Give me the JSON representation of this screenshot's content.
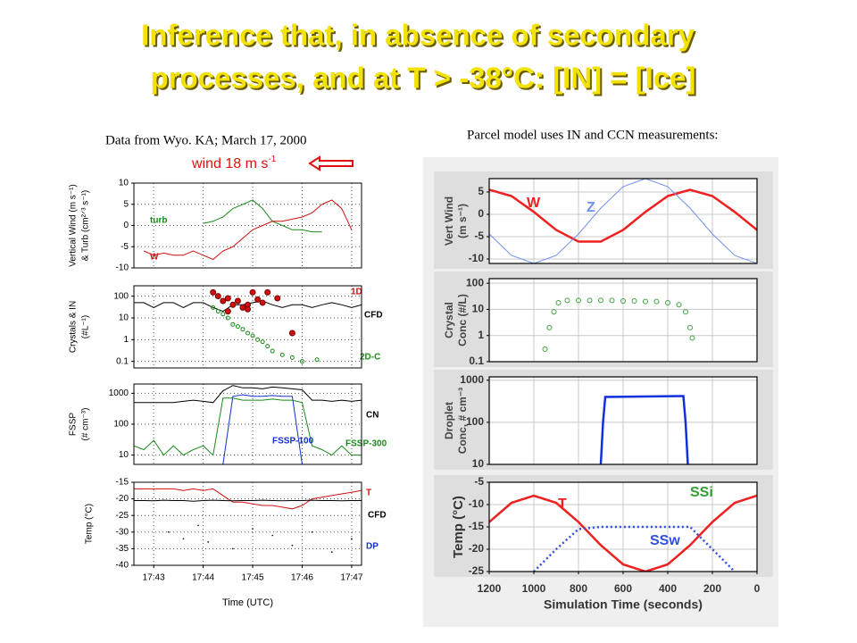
{
  "title": [
    "Inference that, in absence of secondary",
    "processes, and at T > -38°C: [IN] = [Ice]"
  ],
  "left_caption": "Data from Wyo. KA; March 17, 2000",
  "right_caption": "Parcel model uses IN and CCN measurements:",
  "wind_note": {
    "text": "wind 18 m s",
    "sup": "-1"
  },
  "chart_data": [
    {
      "type": "line",
      "ylabel": [
        "Vertical Wind (m s⁻¹)",
        "& Turb (cm²ᐟ³ s⁻¹)"
      ],
      "x": [
        42.6,
        42.8,
        43.0,
        43.2,
        43.4,
        43.6,
        43.8,
        44.0,
        44.2,
        44.4,
        44.6,
        44.8,
        45.0,
        45.2,
        45.4,
        45.6,
        45.8,
        46.0,
        46.2,
        46.4,
        46.6,
        46.8,
        47.0,
        47.2
      ],
      "ylim": [
        -10,
        10
      ],
      "yticks": [
        -10,
        -5,
        0,
        5,
        10
      ],
      "grid": true,
      "series": [
        {
          "name": "turb",
          "color": "#1a8a1a",
          "kind": "line",
          "values": [
            null,
            null,
            null,
            null,
            null,
            null,
            null,
            0.5,
            1,
            2,
            4,
            5,
            6,
            4,
            1,
            0,
            -1,
            -1,
            -1.5,
            -1.5,
            null,
            null,
            null,
            null
          ]
        },
        {
          "name": "W",
          "color": "#d01010",
          "kind": "line",
          "values": [
            null,
            -6,
            -7,
            -6.5,
            -7,
            -7,
            -6,
            -7,
            -8,
            -6,
            -5,
            -3,
            -1,
            0,
            1,
            1,
            1.5,
            2,
            3,
            5,
            6,
            4,
            -1,
            null
          ]
        }
      ]
    },
    {
      "type": "line",
      "ylabel": [
        "Crystals & IN",
        "(#L⁻¹)"
      ],
      "log_scale": true,
      "x": [
        42.6,
        42.8,
        43.0,
        43.2,
        43.4,
        43.6,
        43.8,
        44.0,
        44.2,
        44.4,
        44.6,
        44.8,
        45.0,
        45.2,
        45.4,
        45.6,
        45.8,
        46.0,
        46.2,
        46.4,
        46.6,
        46.8,
        47.0,
        47.2
      ],
      "ylim": [
        0.05,
        300
      ],
      "yticks": [
        0.1,
        1,
        10,
        100
      ],
      "grid": true,
      "series": [
        {
          "name": "CFD",
          "color": "#000000",
          "kind": "line",
          "values": [
            50,
            50,
            30,
            50,
            50,
            30,
            50,
            50,
            30,
            20,
            40,
            40,
            50,
            60,
            40,
            30,
            40,
            40,
            30,
            40,
            50,
            40,
            30,
            40
          ]
        },
        {
          "name": "1D",
          "color": "#d01010",
          "kind": "points",
          "marker": "filled",
          "x": [
            44.2,
            44.3,
            44.4,
            44.5,
            44.6,
            44.7,
            44.8,
            44.9,
            45.0,
            45.1,
            45.2,
            45.3,
            45.5,
            45.8,
            44.5,
            44.9
          ],
          "values": [
            150,
            100,
            60,
            80,
            40,
            60,
            30,
            40,
            150,
            70,
            50,
            150,
            80,
            2,
            20,
            25
          ]
        },
        {
          "name": "2D-C",
          "color": "#1a8a1a",
          "kind": "points",
          "marker": "open",
          "x": [
            44.2,
            44.3,
            44.4,
            44.5,
            44.6,
            44.7,
            44.8,
            44.9,
            45.0,
            45.1,
            45.2,
            45.3,
            45.4,
            45.6,
            45.8,
            46.0,
            46.3
          ],
          "values": [
            30,
            20,
            15,
            10,
            5,
            4,
            3,
            2,
            1.5,
            1,
            0.8,
            0.5,
            0.3,
            0.2,
            0.15,
            0.1,
            0.12
          ]
        }
      ]
    },
    {
      "type": "line",
      "ylabel": [
        "FSSP",
        "(# cm⁻³)"
      ],
      "log_scale": true,
      "x": [
        42.6,
        42.8,
        43.0,
        43.2,
        43.4,
        43.6,
        43.8,
        44.0,
        44.2,
        44.4,
        44.6,
        44.8,
        45.0,
        45.2,
        45.4,
        45.6,
        45.8,
        46.0,
        46.2,
        46.4,
        46.6,
        46.8,
        47.0,
        47.2
      ],
      "ylim": [
        5,
        2000
      ],
      "yticks": [
        10,
        100,
        1000
      ],
      "grid": true,
      "series": [
        {
          "name": "CN",
          "color": "#000000",
          "kind": "line",
          "values": [
            500,
            500,
            500,
            500,
            500,
            550,
            600,
            550,
            500,
            1200,
            1800,
            1500,
            1500,
            1400,
            1600,
            1500,
            1400,
            1300,
            600,
            600,
            550,
            600,
            550,
            600
          ]
        },
        {
          "name": "FSSP-100",
          "color": "#1030d0",
          "kind": "line",
          "values": [
            null,
            null,
            null,
            null,
            null,
            null,
            null,
            null,
            null,
            5,
            800,
            900,
            800,
            800,
            850,
            800,
            800,
            5,
            null,
            null,
            null,
            null,
            null,
            null
          ]
        },
        {
          "name": "FSSP-300",
          "color": "#1a8a1a",
          "kind": "line",
          "values": [
            20,
            15,
            30,
            10,
            20,
            10,
            15,
            20,
            10,
            700,
            700,
            600,
            600,
            600,
            650,
            600,
            600,
            500,
            20,
            15,
            10,
            20,
            10,
            10
          ]
        }
      ]
    },
    {
      "type": "line",
      "ylabel": [
        "Temp (°C)"
      ],
      "xlabel": "Time (UTC)",
      "x": [
        42.6,
        42.8,
        43.0,
        43.2,
        43.4,
        43.6,
        43.8,
        44.0,
        44.2,
        44.4,
        44.6,
        44.8,
        45.0,
        45.2,
        45.4,
        45.6,
        45.8,
        46.0,
        46.2,
        46.4,
        46.6,
        46.8,
        47.0,
        47.2
      ],
      "xlim": [
        42.6,
        47.2
      ],
      "xticks": [
        {
          "value": 43,
          "label": "17:43"
        },
        {
          "value": 44,
          "label": "17:44"
        },
        {
          "value": 45,
          "label": "17:45"
        },
        {
          "value": 46,
          "label": "17:46"
        },
        {
          "value": 47,
          "label": "17:47"
        }
      ],
      "ylim": [
        -40,
        -15
      ],
      "yticks": [
        -40,
        -35,
        -30,
        -25,
        -20,
        -15
      ],
      "grid": true,
      "series": [
        {
          "name": "T",
          "color": "#d01010",
          "kind": "line",
          "values": [
            -17,
            -17,
            -17,
            -17,
            -17,
            -17.5,
            -17,
            -17.5,
            -17,
            -19,
            -21,
            -21,
            -21.5,
            -22,
            -22,
            -22.5,
            -23,
            -22,
            -20,
            -19.5,
            -19,
            -18.5,
            -18,
            -17.5
          ]
        },
        {
          "name": "CFD",
          "color": "#000000",
          "kind": "line",
          "values": [
            -20.5,
            -20.5,
            -20.6,
            -20.4,
            -20.5,
            -20.5,
            -20.7,
            -20.5,
            -20.4,
            -20.5,
            -20.6,
            -20.5,
            -20.5,
            -20.4,
            -20.5,
            -20.6,
            -20.5,
            -20.5,
            -20.4,
            -20.5,
            -20.5,
            -20.6,
            -20.5,
            -20.5
          ]
        },
        {
          "name": "DP",
          "color": "#1030d0",
          "kind": "points",
          "marker": "dot",
          "x": [
            43.3,
            43.6,
            43.9,
            44.1,
            44.6,
            45.0,
            45.4,
            45.8,
            46.2,
            46.6,
            47.0
          ],
          "values": [
            -30,
            -32,
            -28,
            -33,
            -35,
            -29,
            -31,
            -34,
            -30,
            -36,
            -32
          ]
        }
      ]
    },
    {
      "type": "line",
      "ylabel": [
        "Vert Wind",
        "(m s⁻¹)"
      ],
      "x": [
        1200,
        1100,
        1000,
        900,
        800,
        700,
        600,
        500,
        400,
        300,
        200,
        100,
        0
      ],
      "ylim": [
        -11,
        8
      ],
      "yticks": [
        -10,
        -5,
        0,
        5
      ],
      "grid": true,
      "series": [
        {
          "name": "W",
          "color": "#ee2020",
          "kind": "line",
          "values": [
            5.5,
            4.1,
            0.54,
            -3.5,
            -6.1,
            -6.1,
            -3.5,
            0.54,
            4.1,
            5.5,
            4.1,
            0.54,
            -3.5
          ]
        },
        {
          "name": "Z",
          "color": "#7090ee",
          "kind": "line",
          "thin": true,
          "values": [
            -4.4,
            -9.2,
            -11,
            -9.2,
            -4.4,
            1.4,
            6.2,
            8,
            6.2,
            1.4,
            -4.4,
            -9.2,
            -11
          ]
        }
      ]
    },
    {
      "type": "line",
      "ylabel": [
        "Crystal",
        "Conc (#/L)"
      ],
      "log_scale": true,
      "x": [
        1200,
        1100,
        1000,
        900,
        800,
        700,
        600,
        500,
        400,
        300,
        200,
        100,
        0
      ],
      "ylim": [
        0.1,
        150
      ],
      "yticks": [
        0.1,
        1,
        10,
        100
      ],
      "grid": true,
      "series": [
        {
          "color": "#40a040",
          "kind": "points",
          "marker": "open",
          "x": [
            950,
            930,
            910,
            890,
            850,
            800,
            750,
            700,
            650,
            600,
            550,
            500,
            450,
            400,
            350,
            320,
            300,
            290
          ],
          "values": [
            0.3,
            2,
            8,
            18,
            22,
            22,
            22,
            22,
            22,
            21,
            21,
            20,
            20,
            18,
            15,
            8,
            2,
            0.8
          ]
        }
      ]
    },
    {
      "type": "line",
      "ylabel": [
        "Droplet",
        "Conc, # cm⁻³"
      ],
      "log_scale": true,
      "x": [
        700,
        690,
        680,
        330,
        320,
        310
      ],
      "ylim": [
        10,
        1200
      ],
      "yticks": [
        10,
        100,
        1000
      ],
      "grid": true,
      "series": [
        {
          "color": "#1030e0",
          "kind": "line",
          "values": [
            10,
            100,
            400,
            420,
            100,
            10
          ]
        }
      ]
    },
    {
      "type": "line",
      "ylabel": [
        "Temp (°C)"
      ],
      "xlabel": "Simulation Time (seconds)",
      "x": [
        1200,
        1100,
        1000,
        900,
        800,
        700,
        600,
        500,
        400,
        300,
        200,
        100,
        0
      ],
      "xlim": [
        1200,
        0
      ],
      "xticks": [
        1200,
        1000,
        800,
        600,
        400,
        200,
        0
      ],
      "ylim": [
        -25,
        -5
      ],
      "yticks": [
        -25,
        -20,
        -15,
        -10,
        -5
      ],
      "grid": true,
      "annotations": [
        "SSi"
      ],
      "series": [
        {
          "name": "T",
          "color": "#ee2020",
          "kind": "line",
          "values": [
            -13.9,
            -9.6,
            -8,
            -9.6,
            -13.9,
            -19.1,
            -23.4,
            -25,
            -23.4,
            -19.1,
            -13.9,
            -9.6,
            -8
          ]
        },
        {
          "name": "SSw",
          "color": "#3050e0",
          "kind": "line",
          "dash": true,
          "values": [
            null,
            null,
            -25,
            -20,
            -15.5,
            -15,
            -15,
            -15,
            -15,
            -15,
            -20,
            -25,
            null
          ]
        }
      ]
    }
  ]
}
